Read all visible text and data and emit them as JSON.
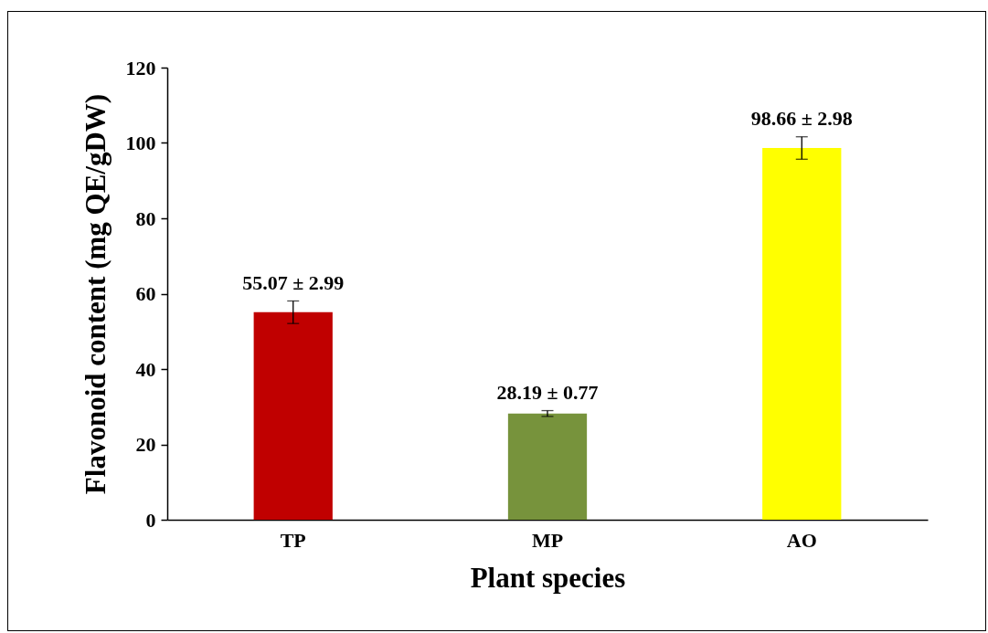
{
  "chart_data": {
    "type": "bar",
    "xlabel": "Plant species",
    "ylabel": "Flavonoid content (mg QE/gDW)",
    "categories": [
      "TP",
      "MP",
      "AO"
    ],
    "values": [
      55.07,
      28.19,
      98.66
    ],
    "errors": [
      2.99,
      0.77,
      2.98
    ],
    "value_labels": [
      "55.07 ± 2.99",
      "28.19 ± 0.77",
      "98.66 ± 2.98"
    ],
    "colors": [
      "#c00000",
      "#77933c",
      "#ffff00"
    ],
    "ylim": [
      0,
      120
    ],
    "yticks": [
      0,
      20,
      40,
      60,
      80,
      100,
      120
    ]
  }
}
